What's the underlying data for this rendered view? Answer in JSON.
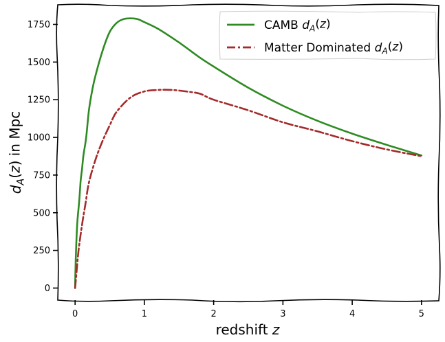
{
  "chart_data": {
    "type": "line",
    "xlabel": "redshift z",
    "ylabel": "d_A(z) in Mpc",
    "xlim": [
      -0.25,
      5.25
    ],
    "ylim": [
      -80,
      1880
    ],
    "xticks": [
      0,
      1,
      2,
      3,
      4,
      5
    ],
    "yticks": [
      0,
      250,
      500,
      750,
      1000,
      1250,
      1500,
      1750
    ],
    "grid": false,
    "legend_position": "top-right",
    "series": [
      {
        "name": "CAMB d_A(z)",
        "color": "#2e8b22",
        "style": "solid",
        "x": [
          0.0,
          0.01,
          0.03,
          0.06,
          0.08,
          0.1,
          0.12,
          0.16,
          0.2,
          0.25,
          0.3,
          0.4,
          0.5,
          0.6,
          0.7,
          0.8,
          0.9,
          1.0,
          1.2,
          1.5,
          1.8,
          2.0,
          2.5,
          3.0,
          3.5,
          4.0,
          4.5,
          5.0
        ],
        "y": [
          0,
          200,
          420,
          580,
          710,
          790,
          880,
          1000,
          1180,
          1320,
          1420,
          1580,
          1700,
          1760,
          1785,
          1790,
          1785,
          1765,
          1720,
          1630,
          1530,
          1470,
          1330,
          1210,
          1110,
          1025,
          950,
          880
        ]
      },
      {
        "name": "Matter Dominated d_A(z)",
        "color": "#a52a2a",
        "style": "dashdot",
        "x": [
          0.0,
          0.02,
          0.05,
          0.1,
          0.15,
          0.2,
          0.3,
          0.4,
          0.5,
          0.6,
          0.8,
          1.0,
          1.2,
          1.4,
          1.6,
          1.8,
          2.0,
          2.5,
          3.0,
          3.5,
          4.0,
          4.5,
          5.0
        ],
        "y": [
          0,
          100,
          250,
          420,
          560,
          700,
          860,
          980,
          1080,
          1170,
          1265,
          1305,
          1315,
          1315,
          1305,
          1290,
          1250,
          1180,
          1100,
          1040,
          975,
          920,
          875
        ]
      }
    ]
  }
}
